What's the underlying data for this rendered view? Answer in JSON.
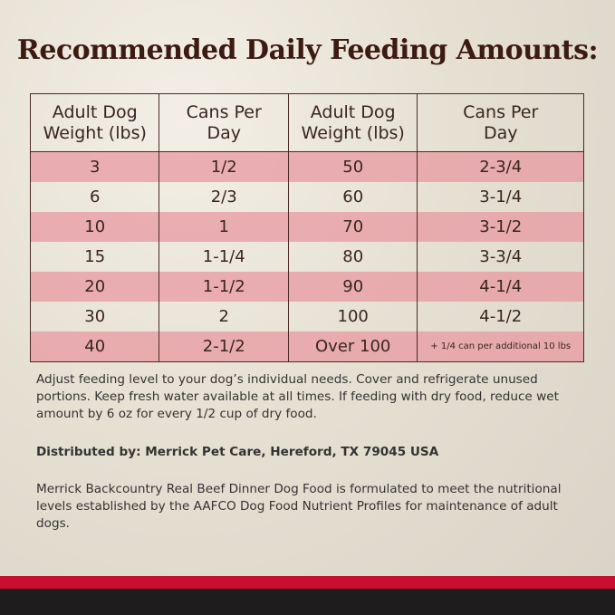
{
  "title": "Recommended Daily Feeding Amounts:",
  "table": {
    "header": [
      "Adult Dog Weight (lbs)",
      "Cans Per Day",
      "Adult Dog Weight (lbs)",
      "Cans Per Day"
    ],
    "rows": [
      [
        "3",
        "1/2",
        "50",
        "2-3/4"
      ],
      [
        "6",
        "2/3",
        "60",
        "3-1/4"
      ],
      [
        "10",
        "1",
        "70",
        "3-1/2"
      ],
      [
        "15",
        "1-1/4",
        "80",
        "3-3/4"
      ],
      [
        "20",
        "1-1/2",
        "90",
        "4-1/4"
      ],
      [
        "30",
        "2",
        "100",
        "4-1/2"
      ],
      [
        "40",
        "2-1/2",
        "Over 100",
        "+ 1/4 can per additional 10 lbs"
      ]
    ]
  },
  "notes": {
    "instructions": "Adjust feeding level to your dog’s individual needs. Cover and refrigerate unused portions. Keep fresh water available at all times. If feeding with dry food, reduce wet amount by 6 oz for every 1/2 cup of dry food.",
    "distributor": "Distributed by: Merrick Pet Care, Hereford, TX 79045 USA",
    "aafco": "Merrick Backcountry Real Beef Dinner Dog Food is formulated to meet the nutritional levels established by the AAFCO Dog Food Nutrient Profiles for maintenance of adult dogs."
  }
}
